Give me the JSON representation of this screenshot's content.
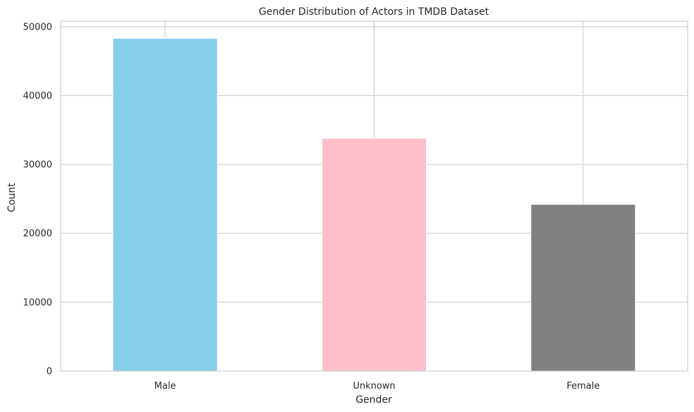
{
  "chart_data": {
    "type": "bar",
    "title": "Gender Distribution of Actors in TMDB Dataset",
    "xlabel": "Gender",
    "ylabel": "Count",
    "categories": [
      "Male",
      "Unknown",
      "Female"
    ],
    "values": [
      48300,
      33800,
      24200
    ],
    "colors": [
      "#87ceeb",
      "#ffc0cb",
      "#808080"
    ],
    "ylim": [
      0,
      50800
    ],
    "yticks": [
      0,
      10000,
      20000,
      30000,
      40000,
      50000
    ],
    "ytick_labels": [
      "0",
      "10000",
      "20000",
      "30000",
      "40000",
      "50000"
    ],
    "grid": true,
    "legend": "none",
    "style": {
      "grid_color": "#cccccc",
      "spine_color": "#cccccc",
      "text_color": "#262626"
    }
  }
}
